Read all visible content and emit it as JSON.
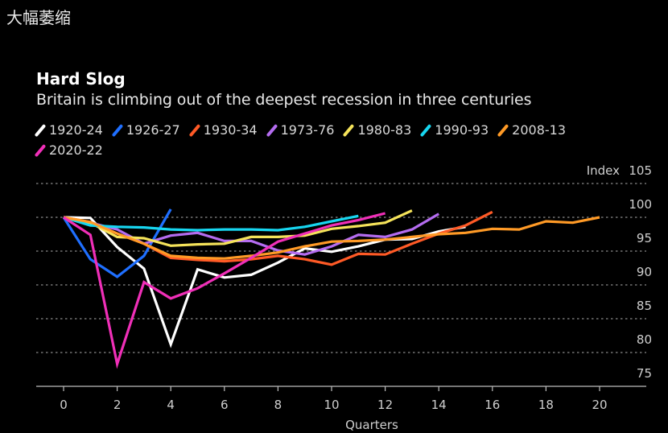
{
  "header": {
    "label": "大幅萎缩"
  },
  "chart_data": {
    "type": "line",
    "title": "Hard Slog",
    "subtitle": "Britain is climbing out of the deepest recession in three centuries",
    "xlabel": "Quarters",
    "ylabel": "Index",
    "xlim": [
      -1,
      22
    ],
    "ylim": [
      75,
      105
    ],
    "x_ticks": [
      0,
      2,
      4,
      6,
      8,
      10,
      12,
      14,
      16,
      18,
      20
    ],
    "y_ticks": [
      75,
      80,
      85,
      90,
      95,
      100,
      105
    ],
    "grid": "horizontal dotted",
    "legend_position": "top-left",
    "series": [
      {
        "name": "1920-24",
        "color": "#ffffff",
        "values": [
          100,
          99.9,
          95.6,
          92.4,
          81.2,
          92.3,
          91.1,
          91.5,
          93.3,
          95.4,
          94.9,
          95.7,
          96.7,
          96.8,
          97.9,
          98.6
        ]
      },
      {
        "name": "1926-27",
        "color": "#1f6fff",
        "values": [
          100,
          93.8,
          91.2,
          94.3,
          101.2
        ]
      },
      {
        "name": "1930-34",
        "color": "#ff5a26",
        "values": [
          100,
          99.3,
          97.6,
          96.1,
          94.0,
          93.7,
          93.5,
          93.8,
          94.3,
          93.8,
          93.0,
          94.6,
          94.5,
          96.1,
          97.6,
          98.8,
          100.8
        ]
      },
      {
        "name": "1973-76",
        "color": "#b46cf0",
        "values": [
          100,
          99.2,
          98.2,
          96.1,
          97.3,
          97.7,
          96.5,
          96.5,
          95.1,
          94.5,
          95.7,
          97.4,
          97.1,
          98.2,
          100.5
        ]
      },
      {
        "name": "1980-83",
        "color": "#f5e35a",
        "values": [
          100,
          99.2,
          97.1,
          96.9,
          95.8,
          96.0,
          96.1,
          97.1,
          97.1,
          97.3,
          98.3,
          98.7,
          99.2,
          101.0
        ]
      },
      {
        "name": "1990-93",
        "color": "#17d6f0",
        "values": [
          100,
          98.8,
          98.6,
          98.5,
          98.2,
          98.1,
          98.2,
          98.2,
          98.1,
          98.6,
          99.4,
          100.2
        ]
      },
      {
        "name": "2008-13",
        "color": "#ff9a26",
        "values": [
          100,
          99.3,
          97.6,
          96.1,
          94.3,
          94.0,
          93.9,
          94.3,
          94.8,
          95.7,
          96.4,
          96.5,
          96.7,
          97.1,
          97.5,
          97.7,
          98.3,
          98.2,
          99.4,
          99.2,
          100.0
        ]
      },
      {
        "name": "2020-22",
        "color": "#f02fb8",
        "values": [
          100,
          97.4,
          78.3,
          90.4,
          88.0,
          89.5,
          91.7,
          94.0,
          96.4,
          97.6,
          98.8,
          99.6,
          100.6
        ]
      }
    ]
  }
}
